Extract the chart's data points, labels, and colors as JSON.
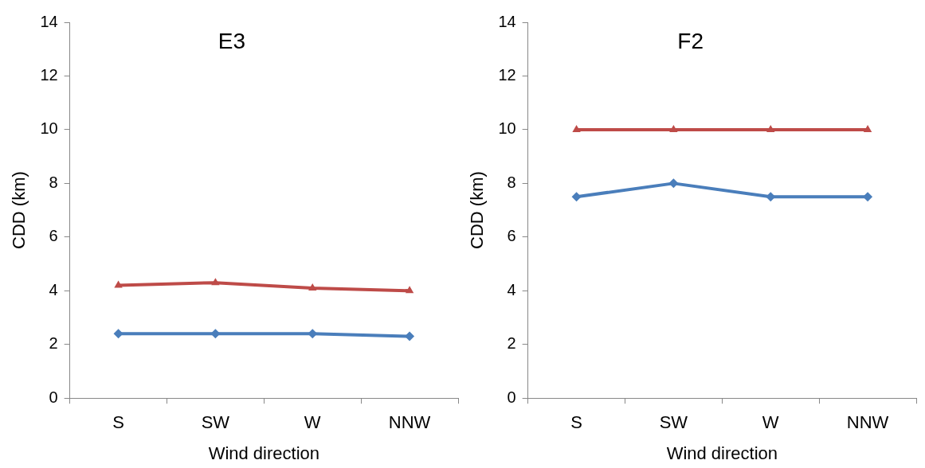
{
  "chart_data": [
    {
      "type": "line",
      "title": "E3",
      "xlabel": "Wind direction",
      "ylabel": "CDD (km)",
      "categories": [
        "S",
        "SW",
        "W",
        "NNW"
      ],
      "ylim": [
        0,
        14
      ],
      "yticks": [
        0,
        2,
        4,
        6,
        8,
        10,
        12,
        14
      ],
      "series": [
        {
          "color": "#4a7ebb",
          "marker": "diamond",
          "values": [
            2.4,
            2.4,
            2.4,
            2.3
          ]
        },
        {
          "color": "#be4b48",
          "marker": "triangle",
          "values": [
            4.2,
            4.3,
            4.1,
            4.0
          ]
        }
      ]
    },
    {
      "type": "line",
      "title": "F2",
      "xlabel": "Wind direction",
      "ylabel": "CDD (km)",
      "categories": [
        "S",
        "SW",
        "W",
        "NNW"
      ],
      "ylim": [
        0,
        14
      ],
      "yticks": [
        0,
        2,
        4,
        6,
        8,
        10,
        12,
        14
      ],
      "series": [
        {
          "color": "#4a7ebb",
          "marker": "diamond",
          "values": [
            7.5,
            8,
            7.5,
            7.5
          ]
        },
        {
          "color": "#be4b48",
          "marker": "triangle",
          "values": [
            10,
            10,
            10,
            10
          ]
        }
      ]
    }
  ]
}
